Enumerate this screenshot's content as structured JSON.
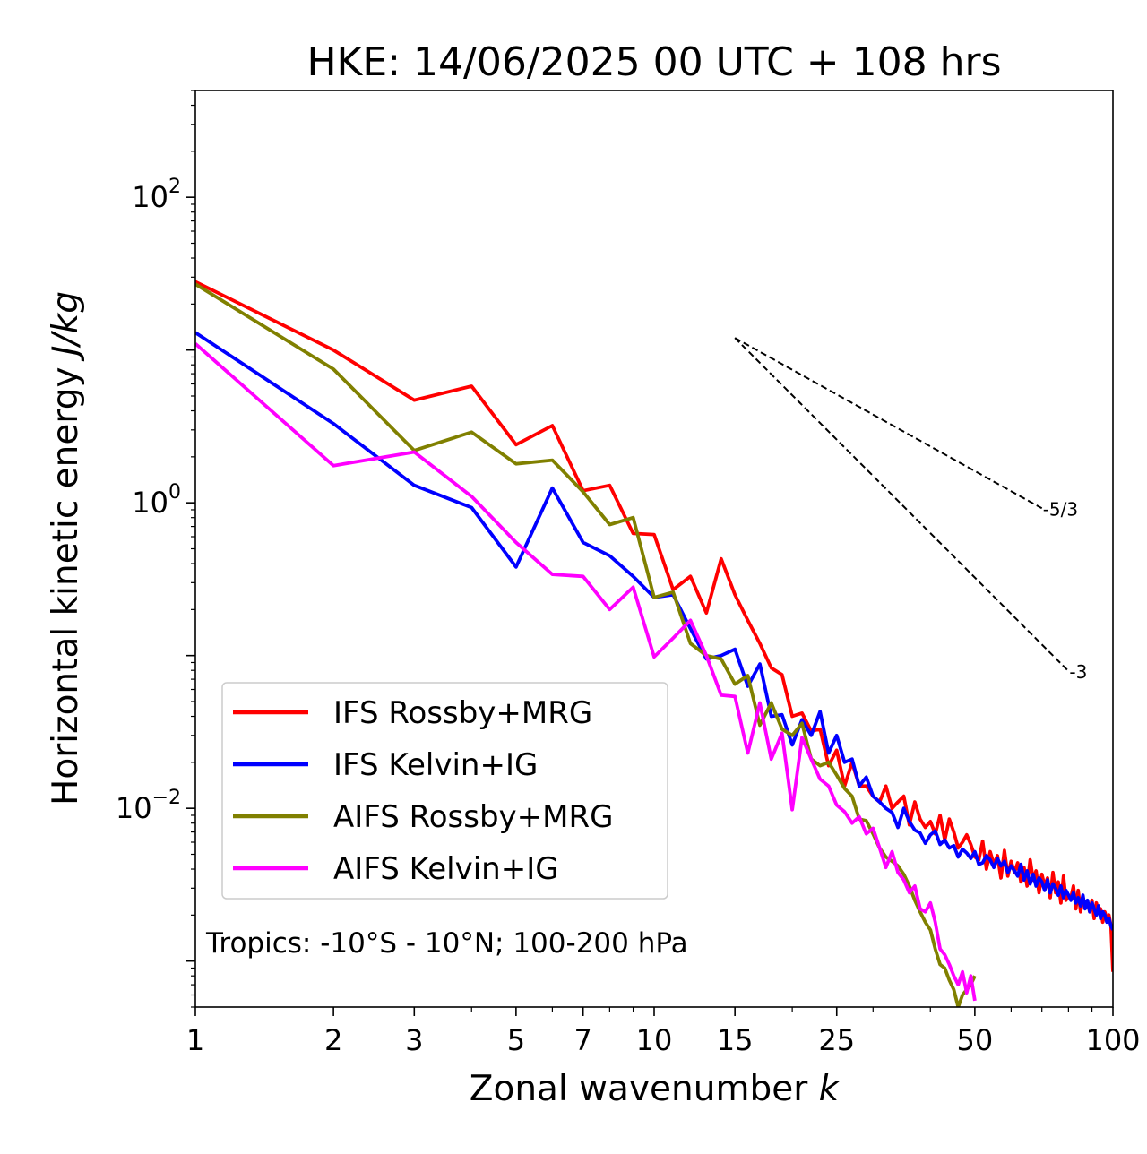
{
  "chart_data": {
    "type": "line",
    "title": "HKE: 14/06/2025 00 UTC + 108 hrs",
    "xlabel": "Zonal wavenumber",
    "xlabel_var": "k",
    "ylabel": "Horizontal kinetic energy",
    "ylabel_unit": "J/kg",
    "xscale": "log",
    "yscale": "log",
    "xlim": [
      1,
      100
    ],
    "ylim": [
      0.0005,
      500
    ],
    "xticks": [
      1,
      2,
      3,
      5,
      7,
      10,
      15,
      25,
      50,
      100
    ],
    "xtick_labels": [
      "1",
      "2",
      "3",
      "5",
      "7",
      "10",
      "15",
      "25",
      "50",
      "100"
    ],
    "yticks": [
      {
        "value": 0.01,
        "base": "10",
        "exp": "−2"
      },
      {
        "value": 1,
        "base": "10",
        "exp": "0"
      },
      {
        "value": 100,
        "base": "10",
        "exp": "2"
      }
    ],
    "grid": false,
    "legend_position": "lower-left",
    "annotation": "Tropics: -10°S - 10°N; 100-200 hPa",
    "reference_slopes": [
      {
        "label": "-5/3",
        "slope": -1.6667,
        "x0": 15,
        "y0": 12,
        "x1": 70
      },
      {
        "label": "-3",
        "slope": -3,
        "x0": 15,
        "y0": 12,
        "x1": 80
      }
    ],
    "series": [
      {
        "name": "IFS Rossby+MRG",
        "color": "#ff0000",
        "x": [
          1,
          2,
          3,
          4,
          5,
          6,
          7,
          8,
          9,
          10,
          11,
          12,
          13,
          14,
          15,
          16,
          17,
          18,
          19,
          20,
          21,
          22,
          23,
          24,
          25,
          26,
          27,
          28,
          29,
          30,
          31,
          32,
          33,
          34,
          35,
          36,
          37,
          38,
          39,
          40,
          41,
          42,
          43,
          44,
          45,
          46,
          47,
          48,
          49,
          50,
          51,
          52,
          53,
          54,
          55,
          56,
          57,
          58,
          59,
          60,
          61,
          62,
          63,
          64,
          65,
          66,
          67,
          68,
          69,
          70,
          71,
          72,
          73,
          74,
          75,
          76,
          77,
          78,
          79,
          80,
          81,
          82,
          83,
          84,
          85,
          86,
          87,
          88,
          89,
          90,
          91,
          92,
          93,
          94,
          95,
          96,
          97,
          98,
          99,
          100
        ],
        "y": [
          28,
          10,
          4.7,
          5.8,
          2.4,
          3.2,
          1.2,
          1.3,
          0.63,
          0.62,
          0.27,
          0.33,
          0.19,
          0.43,
          0.25,
          0.17,
          0.12,
          0.083,
          0.075,
          0.04,
          0.042,
          0.032,
          0.033,
          0.019,
          0.024,
          0.014,
          0.02,
          0.014,
          0.014,
          0.012,
          0.011,
          0.014,
          0.01,
          0.011,
          0.012,
          0.0078,
          0.011,
          0.0085,
          0.0075,
          0.0082,
          0.0068,
          0.009,
          0.0062,
          0.0085,
          0.007,
          0.0055,
          0.006,
          0.0067,
          0.0058,
          0.0048,
          0.0046,
          0.0061,
          0.004,
          0.0052,
          0.0043,
          0.0049,
          0.0035,
          0.0053,
          0.0036,
          0.0045,
          0.0038,
          0.0044,
          0.0033,
          0.0041,
          0.0031,
          0.0046,
          0.0034,
          0.0039,
          0.0028,
          0.0037,
          0.0031,
          0.0035,
          0.0026,
          0.0038,
          0.0028,
          0.0033,
          0.0024,
          0.0036,
          0.0025,
          0.0027,
          0.0026,
          0.0031,
          0.0022,
          0.0029,
          0.0021,
          0.0026,
          0.0023,
          0.0024,
          0.0021,
          0.0025,
          0.0019,
          0.0024,
          0.0021,
          0.0022,
          0.0018,
          0.0021,
          0.0019,
          0.002,
          0.0017,
          0.00085
        ]
      },
      {
        "name": "IFS Kelvin+IG",
        "color": "#0000ff",
        "x": [
          1,
          2,
          3,
          4,
          5,
          6,
          7,
          8,
          9,
          10,
          11,
          12,
          13,
          14,
          15,
          16,
          17,
          18,
          19,
          20,
          21,
          22,
          23,
          24,
          25,
          26,
          27,
          28,
          29,
          30,
          31,
          32,
          33,
          34,
          35,
          36,
          37,
          38,
          39,
          40,
          41,
          42,
          43,
          44,
          45,
          46,
          47,
          48,
          49,
          50,
          51,
          52,
          53,
          54,
          55,
          56,
          57,
          58,
          59,
          60,
          61,
          62,
          63,
          64,
          65,
          66,
          67,
          68,
          69,
          70,
          71,
          72,
          73,
          74,
          75,
          76,
          77,
          78,
          79,
          80,
          81,
          82,
          83,
          84,
          85,
          86,
          87,
          88,
          89,
          90,
          91,
          92,
          93,
          94,
          95,
          96,
          97,
          98,
          99,
          100
        ],
        "y": [
          13,
          3.3,
          1.3,
          0.93,
          0.38,
          1.25,
          0.55,
          0.45,
          0.33,
          0.24,
          0.25,
          0.15,
          0.095,
          0.1,
          0.11,
          0.063,
          0.088,
          0.04,
          0.041,
          0.026,
          0.038,
          0.03,
          0.043,
          0.023,
          0.03,
          0.02,
          0.021,
          0.014,
          0.016,
          0.012,
          0.011,
          0.01,
          0.0094,
          0.0075,
          0.01,
          0.0082,
          0.0072,
          0.0069,
          0.0059,
          0.0067,
          0.0071,
          0.0058,
          0.0062,
          0.0055,
          0.0057,
          0.0048,
          0.0054,
          0.0051,
          0.0047,
          0.0052,
          0.0043,
          0.0044,
          0.0049,
          0.0046,
          0.0041,
          0.0047,
          0.0042,
          0.0045,
          0.0038,
          0.0042,
          0.0039,
          0.0036,
          0.0043,
          0.0034,
          0.0039,
          0.0032,
          0.0037,
          0.0031,
          0.0035,
          0.0033,
          0.0029,
          0.0034,
          0.0028,
          0.0032,
          0.003,
          0.0027,
          0.0031,
          0.0026,
          0.0029,
          0.0027,
          0.0025,
          0.0028,
          0.0024,
          0.0026,
          0.0023,
          0.0027,
          0.0022,
          0.0025,
          0.0021,
          0.0024,
          0.0022,
          0.002,
          0.0023,
          0.0019,
          0.0021,
          0.002,
          0.0018,
          0.0019,
          0.0017,
          0.0016
        ]
      },
      {
        "name": "AIFS Rossby+MRG",
        "color": "#808000",
        "x": [
          1,
          2,
          3,
          4,
          5,
          6,
          7,
          8,
          9,
          10,
          11,
          12,
          13,
          14,
          15,
          16,
          17,
          18,
          19,
          20,
          21,
          22,
          23,
          24,
          25,
          26,
          27,
          28,
          29,
          30,
          31,
          32,
          33,
          34,
          35,
          36,
          37,
          38,
          39,
          40,
          41,
          42,
          43,
          44,
          45,
          46,
          47,
          48,
          49,
          50
        ],
        "y": [
          27,
          7.5,
          2.2,
          2.9,
          1.8,
          1.9,
          1.18,
          0.72,
          0.8,
          0.24,
          0.26,
          0.12,
          0.1,
          0.095,
          0.065,
          0.074,
          0.035,
          0.049,
          0.033,
          0.03,
          0.036,
          0.021,
          0.019,
          0.02,
          0.0165,
          0.0135,
          0.012,
          0.0085,
          0.0083,
          0.0068,
          0.0055,
          0.0048,
          0.0045,
          0.0042,
          0.0037,
          0.0031,
          0.0025,
          0.0021,
          0.0018,
          0.0016,
          0.0012,
          0.00095,
          0.0009,
          0.00075,
          0.00065,
          0.0005,
          0.0006,
          0.00065,
          0.0007,
          0.0008
        ]
      },
      {
        "name": "AIFS Kelvin+IG",
        "color": "#ff00ff",
        "x": [
          1,
          2,
          3,
          4,
          5,
          6,
          7,
          8,
          9,
          10,
          11,
          12,
          13,
          14,
          15,
          16,
          17,
          18,
          19,
          20,
          21,
          22,
          23,
          24,
          25,
          26,
          27,
          28,
          29,
          30,
          31,
          32,
          33,
          34,
          35,
          36,
          37,
          38,
          39,
          40,
          41,
          42,
          43,
          44,
          45,
          46,
          47,
          48,
          49,
          50
        ],
        "y": [
          11,
          1.75,
          2.15,
          1.1,
          0.55,
          0.34,
          0.33,
          0.2,
          0.28,
          0.098,
          0.13,
          0.17,
          0.1,
          0.055,
          0.054,
          0.023,
          0.049,
          0.021,
          0.031,
          0.0098,
          0.029,
          0.021,
          0.0155,
          0.014,
          0.0105,
          0.0095,
          0.008,
          0.0088,
          0.0068,
          0.0074,
          0.0055,
          0.0041,
          0.0052,
          0.0038,
          0.0034,
          0.0028,
          0.0031,
          0.0022,
          0.0021,
          0.0024,
          0.0018,
          0.0012,
          0.0011,
          0.00095,
          0.0008,
          0.0007,
          0.00085,
          0.00062,
          0.0008,
          0.00055
        ]
      }
    ]
  }
}
